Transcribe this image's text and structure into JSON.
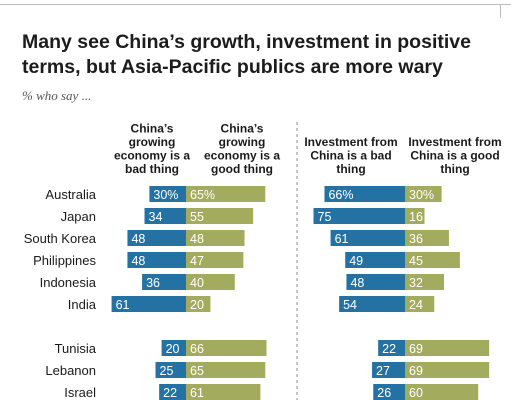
{
  "header": {
    "title": "Many see China’s growth, investment in positive terms, but Asia-Pacific publics are more wary",
    "subtitle": "% who say ..."
  },
  "colors": {
    "bad": "#2472a4",
    "good": "#a3ab5e",
    "text": "#1a1a1a",
    "divider": "#8c8c8c"
  },
  "chart_data": [
    {
      "type": "bar",
      "categories": [
        "Australia",
        "Japan",
        "South Korea",
        "Philippines",
        "Indonesia",
        "India",
        "Tunisia",
        "Lebanon",
        "Israel"
      ],
      "series": [
        {
          "name": "China’s growing economy is a bad thing",
          "values": [
            30,
            34,
            48,
            48,
            36,
            61,
            20,
            25,
            22
          ],
          "labels": [
            "30%",
            "34",
            "48",
            "48",
            "36",
            "61",
            "20",
            "25",
            "22"
          ]
        },
        {
          "name": "China’s growing economy is a good thing",
          "values": [
            65,
            55,
            48,
            47,
            40,
            20,
            66,
            65,
            61
          ],
          "labels": [
            "65%",
            "55",
            "48",
            "47",
            "40",
            "20",
            "66",
            "65",
            "61"
          ]
        }
      ]
    },
    {
      "type": "bar",
      "categories": [
        "Australia",
        "Japan",
        "South Korea",
        "Philippines",
        "Indonesia",
        "India",
        "Tunisia",
        "Lebanon",
        "Israel"
      ],
      "series": [
        {
          "name": "Investment from China is a bad thing",
          "values": [
            66,
            75,
            61,
            49,
            48,
            54,
            22,
            27,
            26
          ],
          "labels": [
            "66%",
            "75",
            "61",
            "49",
            "48",
            "54",
            "22",
            "27",
            "26"
          ]
        },
        {
          "name": "Investment from China is a good thing",
          "values": [
            30,
            16,
            36,
            45,
            32,
            24,
            69,
            69,
            60
          ],
          "labels": [
            "30%",
            "16",
            "36",
            "45",
            "32",
            "24",
            "69",
            "69",
            "60"
          ]
        }
      ]
    }
  ]
}
